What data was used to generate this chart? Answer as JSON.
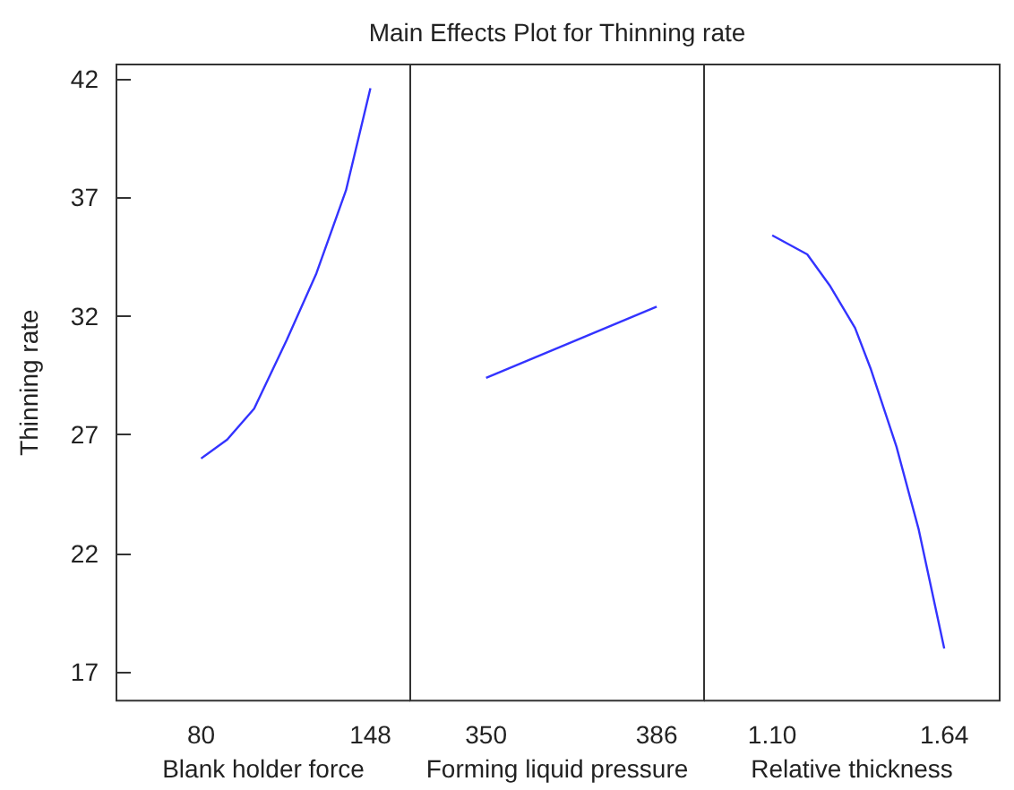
{
  "chart_data": [
    {
      "type": "line",
      "xlabel": "Blank holder force",
      "ylabel": "Thinning rate",
      "x": [
        80,
        90.5,
        101.3,
        114.4,
        126.3,
        138.2,
        148
      ],
      "values": [
        26.0,
        26.8,
        28.1,
        31.0,
        33.8,
        37.3,
        41.6
      ],
      "color": "#3333ff",
      "xlim": [
        46,
        164
      ],
      "xticks": [
        80,
        148
      ],
      "ylim": [
        15.8,
        42.6
      ],
      "yticks": [
        17,
        22,
        27,
        32,
        37,
        42
      ],
      "grid": false
    },
    {
      "type": "line",
      "title": "Main Effects Plot for Thinning rate",
      "xlabel": "Forming liquid pressure",
      "x": [
        350,
        386
      ],
      "values": [
        29.4,
        32.4
      ],
      "color": "#3333ff",
      "xlim": [
        334,
        396
      ],
      "xticks": [
        350,
        386
      ],
      "ylim": [
        15.8,
        42.6
      ],
      "tick_labels": "x",
      "grid": false
    },
    {
      "type": "line",
      "xlabel": "Relative thickness",
      "x": [
        1.1,
        1.21,
        1.28,
        1.36,
        1.41,
        1.49,
        1.56,
        1.64
      ],
      "values": [
        35.4,
        34.6,
        33.3,
        31.5,
        29.75,
        26.5,
        23.0,
        18.0
      ],
      "color": "#3333ff",
      "xlim": [
        0.886,
        1.814
      ],
      "xticks": [
        {
          "value": 1.1,
          "label": "1.10"
        },
        {
          "value": 1.64,
          "label": "1.64"
        }
      ],
      "ylim": [
        15.8,
        42.6
      ],
      "tick_labels": "x",
      "grid": false
    }
  ]
}
